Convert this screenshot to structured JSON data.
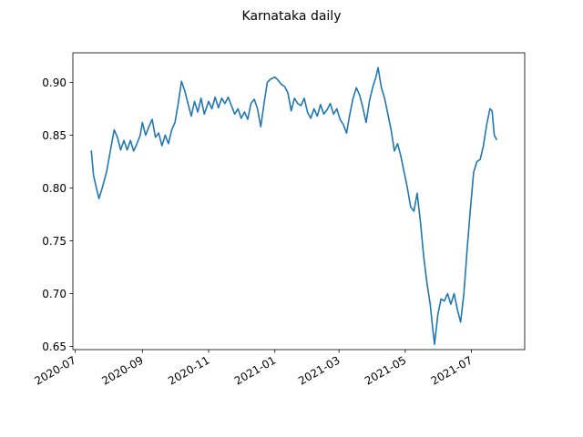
{
  "chart_data": {
    "type": "line",
    "title": "Karnataka daily",
    "xlabel": "",
    "ylabel": "",
    "xlim": [
      "2020-06-29",
      "2021-08-19"
    ],
    "ylim": [
      0.647,
      0.928
    ],
    "grid": false,
    "x_ticks": [
      "2020-07",
      "2020-09",
      "2020-11",
      "2021-01",
      "2021-03",
      "2021-05",
      "2021-07"
    ],
    "x_tick_dates": [
      "2020-07-01",
      "2020-09-01",
      "2020-11-01",
      "2021-01-01",
      "2021-03-01",
      "2021-05-01",
      "2021-07-01"
    ],
    "y_ticks": [
      "0.65",
      "0.70",
      "0.75",
      "0.80",
      "0.85",
      "0.90"
    ],
    "y_tick_values": [
      0.65,
      0.7,
      0.75,
      0.8,
      0.85,
      0.9
    ],
    "series": [
      {
        "color": "#1f77b4",
        "points": [
          [
            "2020-07-16",
            0.835
          ],
          [
            "2020-07-18",
            0.812
          ],
          [
            "2020-07-20",
            0.803
          ],
          [
            "2020-07-23",
            0.79
          ],
          [
            "2020-07-26",
            0.8
          ],
          [
            "2020-07-30",
            0.815
          ],
          [
            "2020-08-03",
            0.838
          ],
          [
            "2020-08-06",
            0.855
          ],
          [
            "2020-08-09",
            0.848
          ],
          [
            "2020-08-12",
            0.836
          ],
          [
            "2020-08-15",
            0.845
          ],
          [
            "2020-08-18",
            0.836
          ],
          [
            "2020-08-21",
            0.845
          ],
          [
            "2020-08-24",
            0.835
          ],
          [
            "2020-08-27",
            0.842
          ],
          [
            "2020-08-30",
            0.85
          ],
          [
            "2020-09-01",
            0.862
          ],
          [
            "2020-09-04",
            0.85
          ],
          [
            "2020-09-07",
            0.858
          ],
          [
            "2020-09-10",
            0.865
          ],
          [
            "2020-09-13",
            0.848
          ],
          [
            "2020-09-16",
            0.852
          ],
          [
            "2020-09-19",
            0.84
          ],
          [
            "2020-09-22",
            0.85
          ],
          [
            "2020-09-25",
            0.842
          ],
          [
            "2020-09-28",
            0.855
          ],
          [
            "2020-10-01",
            0.862
          ],
          [
            "2020-10-04",
            0.88
          ],
          [
            "2020-10-07",
            0.901
          ],
          [
            "2020-10-10",
            0.892
          ],
          [
            "2020-10-13",
            0.88
          ],
          [
            "2020-10-16",
            0.868
          ],
          [
            "2020-10-19",
            0.882
          ],
          [
            "2020-10-22",
            0.872
          ],
          [
            "2020-10-25",
            0.885
          ],
          [
            "2020-10-28",
            0.87
          ],
          [
            "2020-11-01",
            0.882
          ],
          [
            "2020-11-04",
            0.875
          ],
          [
            "2020-11-07",
            0.886
          ],
          [
            "2020-11-10",
            0.876
          ],
          [
            "2020-11-13",
            0.885
          ],
          [
            "2020-11-16",
            0.88
          ],
          [
            "2020-11-19",
            0.886
          ],
          [
            "2020-11-22",
            0.878
          ],
          [
            "2020-11-25",
            0.87
          ],
          [
            "2020-11-28",
            0.875
          ],
          [
            "2020-12-01",
            0.866
          ],
          [
            "2020-12-04",
            0.872
          ],
          [
            "2020-12-07",
            0.865
          ],
          [
            "2020-12-10",
            0.88
          ],
          [
            "2020-12-13",
            0.884
          ],
          [
            "2020-12-16",
            0.875
          ],
          [
            "2020-12-19",
            0.858
          ],
          [
            "2020-12-22",
            0.88
          ],
          [
            "2020-12-25",
            0.9
          ],
          [
            "2020-12-28",
            0.903
          ],
          [
            "2021-01-01",
            0.905
          ],
          [
            "2021-01-04",
            0.902
          ],
          [
            "2021-01-07",
            0.898
          ],
          [
            "2021-01-10",
            0.896
          ],
          [
            "2021-01-13",
            0.89
          ],
          [
            "2021-01-16",
            0.873
          ],
          [
            "2021-01-19",
            0.885
          ],
          [
            "2021-01-22",
            0.88
          ],
          [
            "2021-01-25",
            0.878
          ],
          [
            "2021-01-28",
            0.885
          ],
          [
            "2021-01-31",
            0.872
          ],
          [
            "2021-02-03",
            0.866
          ],
          [
            "2021-02-06",
            0.875
          ],
          [
            "2021-02-09",
            0.868
          ],
          [
            "2021-02-12",
            0.879
          ],
          [
            "2021-02-15",
            0.87
          ],
          [
            "2021-02-18",
            0.874
          ],
          [
            "2021-02-21",
            0.88
          ],
          [
            "2021-02-24",
            0.87
          ],
          [
            "2021-02-27",
            0.875
          ],
          [
            "2021-03-02",
            0.865
          ],
          [
            "2021-03-05",
            0.86
          ],
          [
            "2021-03-08",
            0.852
          ],
          [
            "2021-03-11",
            0.87
          ],
          [
            "2021-03-14",
            0.885
          ],
          [
            "2021-03-17",
            0.895
          ],
          [
            "2021-03-20",
            0.888
          ],
          [
            "2021-03-23",
            0.876
          ],
          [
            "2021-03-26",
            0.862
          ],
          [
            "2021-03-29",
            0.882
          ],
          [
            "2021-04-01",
            0.895
          ],
          [
            "2021-04-04",
            0.905
          ],
          [
            "2021-04-06",
            0.914
          ],
          [
            "2021-04-09",
            0.895
          ],
          [
            "2021-04-12",
            0.885
          ],
          [
            "2021-04-15",
            0.87
          ],
          [
            "2021-04-18",
            0.855
          ],
          [
            "2021-04-21",
            0.835
          ],
          [
            "2021-04-24",
            0.842
          ],
          [
            "2021-04-27",
            0.83
          ],
          [
            "2021-04-30",
            0.815
          ],
          [
            "2021-05-03",
            0.8
          ],
          [
            "2021-05-06",
            0.782
          ],
          [
            "2021-05-09",
            0.778
          ],
          [
            "2021-05-12",
            0.795
          ],
          [
            "2021-05-15",
            0.768
          ],
          [
            "2021-05-18",
            0.735
          ],
          [
            "2021-05-21",
            0.71
          ],
          [
            "2021-05-24",
            0.69
          ],
          [
            "2021-05-26",
            0.67
          ],
          [
            "2021-05-28",
            0.652
          ],
          [
            "2021-05-31",
            0.68
          ],
          [
            "2021-06-03",
            0.695
          ],
          [
            "2021-06-06",
            0.693
          ],
          [
            "2021-06-09",
            0.7
          ],
          [
            "2021-06-12",
            0.69
          ],
          [
            "2021-06-15",
            0.7
          ],
          [
            "2021-06-18",
            0.685
          ],
          [
            "2021-06-21",
            0.673
          ],
          [
            "2021-06-24",
            0.7
          ],
          [
            "2021-06-27",
            0.742
          ],
          [
            "2021-06-30",
            0.78
          ],
          [
            "2021-07-03",
            0.815
          ],
          [
            "2021-07-06",
            0.825
          ],
          [
            "2021-07-09",
            0.827
          ],
          [
            "2021-07-12",
            0.84
          ],
          [
            "2021-07-15",
            0.86
          ],
          [
            "2021-07-18",
            0.875
          ],
          [
            "2021-07-20",
            0.873
          ],
          [
            "2021-07-22",
            0.85
          ],
          [
            "2021-07-24",
            0.846
          ]
        ]
      }
    ]
  }
}
